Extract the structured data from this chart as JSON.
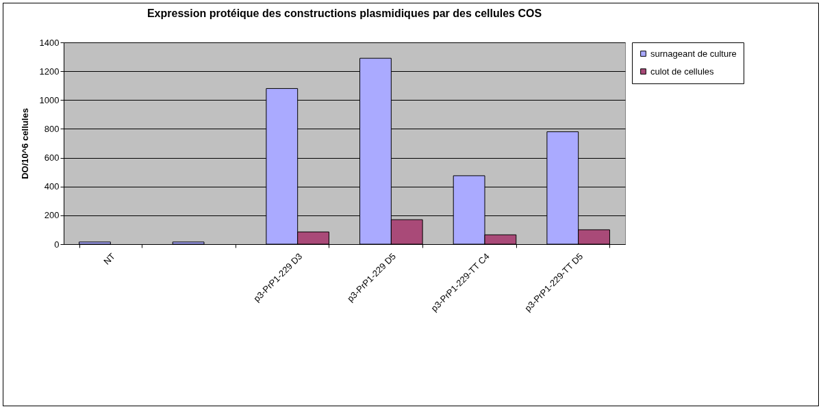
{
  "chart_data": {
    "type": "bar",
    "title": "Expression protéique des constructions plasmidiques par des cellules COS",
    "ylabel": "DO/10^6 cellules",
    "categories": [
      "NT",
      null,
      "p3-PrP1-229 D3",
      "p3-PrP1-229 D5",
      "p3-PrP1-229-TT C4",
      "p3-PrP1-229-TT D5"
    ],
    "series": [
      {
        "name": "surnageant de culture",
        "color": "#aaaaff",
        "values": [
          15,
          15,
          1080,
          1290,
          475,
          780
        ]
      },
      {
        "name": "culot de cellules",
        "color": "#a94a78",
        "values": [
          null,
          null,
          85,
          170,
          65,
          100
        ]
      }
    ],
    "ylim": [
      0,
      1400
    ],
    "yticks": [
      0,
      200,
      400,
      600,
      800,
      1000,
      1200,
      1400
    ],
    "grid": "y",
    "legend": "right"
  }
}
